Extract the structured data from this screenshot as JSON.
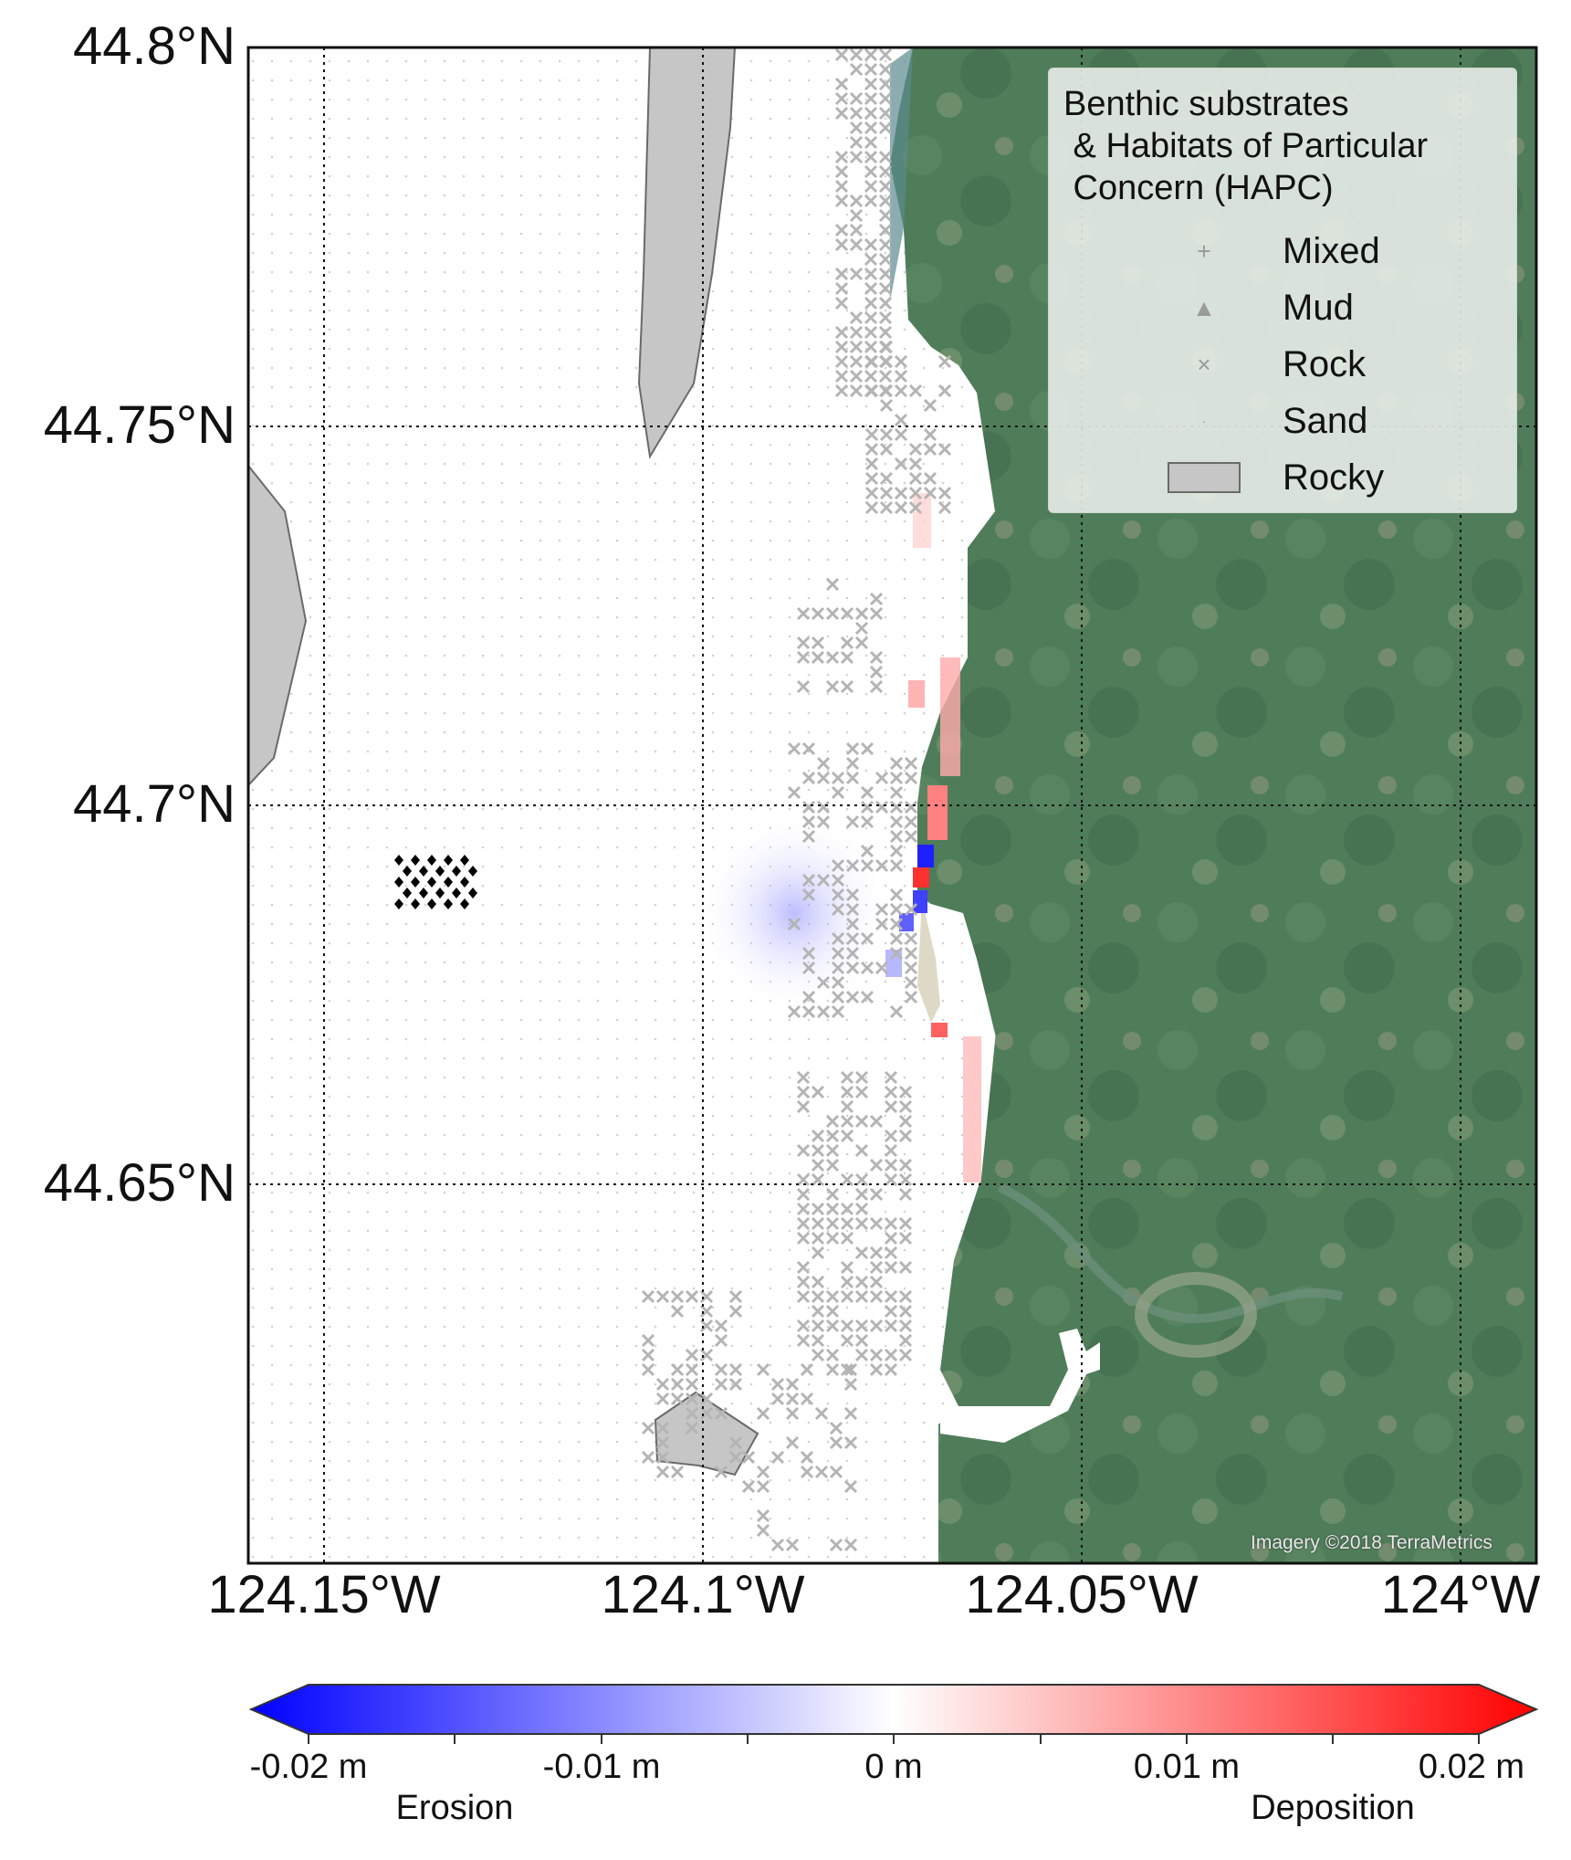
{
  "map": {
    "latitude_ticks": [
      "44.8°N",
      "44.75°N",
      "44.7°N",
      "44.65°N"
    ],
    "longitude_ticks": [
      "124.15°W",
      "124.1°W",
      "124.05°W",
      "124°W"
    ],
    "credit": "Imagery ©2018 TerraMetrics",
    "colors": {
      "land": "#4f7d5a",
      "ocean_overlay": "#ffffff",
      "rocky_fill": "#c6c6c6",
      "rock_marker": "#b4b4b4",
      "erosion": "#0000ff",
      "deposition": "#ff0000"
    }
  },
  "legend": {
    "title": "Benthic substrates\n & Habitats of Particular\n Concern (HAPC)",
    "items": [
      {
        "label": "Mixed",
        "icon": "plus-marker-icon"
      },
      {
        "label": "Mud",
        "icon": "triangle-marker-icon"
      },
      {
        "label": "Rock",
        "icon": "x-marker-icon"
      },
      {
        "label": "Sand",
        "icon": "dot-marker-icon"
      },
      {
        "label": "Rocky",
        "icon": "polygon-swatch-icon"
      }
    ]
  },
  "colorbar": {
    "ticks": [
      "-0.02 m",
      "-0.01 m",
      "0 m",
      "0.01 m",
      "0.02 m"
    ],
    "left_label": "Erosion",
    "right_label": "Deposition",
    "range": [
      -0.02,
      0.02
    ]
  }
}
